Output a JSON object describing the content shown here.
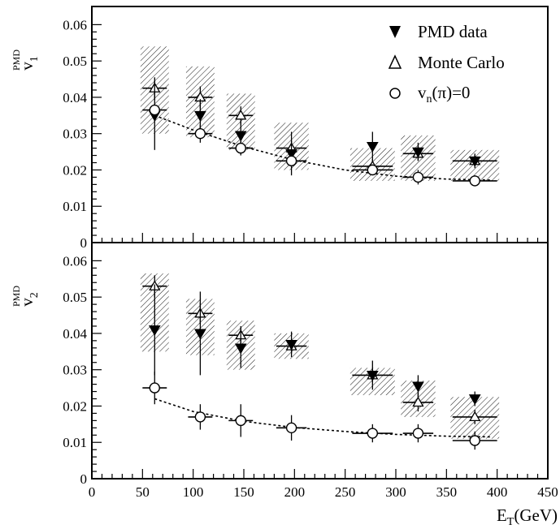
{
  "chart_data": [
    {
      "panel": "top",
      "type": "scatter",
      "ylabel": {
        "main": "v",
        "sub": "1",
        "sup": "PMD"
      },
      "xlim": [
        0,
        450
      ],
      "ylim": [
        0,
        0.065
      ],
      "yticks": [
        "0",
        "0.01",
        "0.02",
        "0.03",
        "0.04",
        "0.05",
        "0.06"
      ],
      "legend": {
        "position": "top-right",
        "entries": [
          {
            "marker": "filled-down-triangle",
            "text": "PMD data"
          },
          {
            "marker": "open-up-triangle",
            "text": "Monte Carlo"
          },
          {
            "marker": "open-circle",
            "main": "v",
            "sub": "n",
            "rest": "(π)=0"
          }
        ]
      },
      "series": [
        {
          "name": "PMD data",
          "marker": "filled-down-triangle",
          "x": [
            62,
            107,
            147,
            197,
            277,
            322,
            378
          ],
          "y": [
            0.035,
            0.035,
            0.0295,
            0.0245,
            0.0265,
            0.025,
            0.0225
          ],
          "yerr": [
            0.0095,
            0.0045,
            0.004,
            0.006,
            0.004,
            0.0025,
            0.002
          ]
        },
        {
          "name": "Monte Carlo",
          "marker": "open-up-triangle",
          "x": [
            62,
            107,
            147,
            197,
            277,
            322,
            378
          ],
          "y": [
            0.0425,
            0.04,
            0.035,
            0.026,
            0.021,
            0.0245,
            0.0225
          ],
          "yerr": [
            0.003,
            0.003,
            0.0025,
            0.002,
            0.002,
            0.002,
            0.0015
          ],
          "xerr": [
            12,
            12,
            12,
            15,
            20,
            15,
            22
          ],
          "syst_band": [
            [
              0.03,
              0.054
            ],
            [
              0.029,
              0.0485
            ],
            [
              0.0255,
              0.041
            ],
            [
              0.02,
              0.033
            ],
            [
              0.017,
              0.026
            ],
            [
              0.017,
              0.0295
            ],
            [
              0.017,
              0.0255
            ]
          ]
        },
        {
          "name": "v_n(π)=0",
          "marker": "open-circle",
          "x": [
            62,
            107,
            147,
            197,
            277,
            322,
            378
          ],
          "y": [
            0.0365,
            0.03,
            0.026,
            0.0225,
            0.02,
            0.018,
            0.017
          ],
          "yerr": [
            0.0015,
            0.0025,
            0.002,
            0.002,
            0.0015,
            0.002,
            0.0015
          ],
          "xerr": [
            12,
            12,
            12,
            15,
            20,
            15,
            22
          ],
          "fit_curve": {
            "style": "dotted",
            "x": [
              62,
              100,
              150,
              200,
              250,
              300,
              350,
              395
            ],
            "y": [
              0.035,
              0.031,
              0.0264,
              0.0227,
              0.02,
              0.0183,
              0.0175,
              0.0172
            ]
          }
        }
      ]
    },
    {
      "panel": "bottom",
      "type": "scatter",
      "ylabel": {
        "main": "v",
        "sub": "2",
        "sup": "PMD"
      },
      "xlabel": {
        "main": "E",
        "sub": "T",
        "rest": "(GeV)"
      },
      "xlim": [
        0,
        450
      ],
      "ylim": [
        0,
        0.065
      ],
      "xticks": [
        "0",
        "50",
        "100",
        "150",
        "200",
        "250",
        "300",
        "350",
        "400",
        "450"
      ],
      "yticks": [
        "0",
        "0.01",
        "0.02",
        "0.03",
        "0.04",
        "0.05",
        "0.06"
      ],
      "series": [
        {
          "name": "PMD data",
          "marker": "filled-down-triangle",
          "x": [
            62,
            107,
            147,
            197,
            277,
            322,
            378
          ],
          "y": [
            0.041,
            0.04,
            0.036,
            0.037,
            0.0285,
            0.0255,
            0.022
          ],
          "yerr": [
            0.0125,
            0.0115,
            0.0055,
            0.0035,
            0.004,
            0.003,
            0.002
          ]
        },
        {
          "name": "Monte Carlo",
          "marker": "open-up-triangle",
          "x": [
            62,
            107,
            147,
            197,
            277,
            322,
            378
          ],
          "y": [
            0.053,
            0.0455,
            0.0395,
            0.0365,
            0.0285,
            0.021,
            0.017
          ],
          "yerr": [
            0.003,
            0.003,
            0.0025,
            0.002,
            0.002,
            0.0025,
            0.002
          ],
          "xerr": [
            12,
            12,
            12,
            15,
            20,
            15,
            22
          ],
          "syst_band": [
            [
              0.035,
              0.0565
            ],
            [
              0.034,
              0.0495
            ],
            [
              0.03,
              0.0435
            ],
            [
              0.033,
              0.04
            ],
            [
              0.023,
              0.0305
            ],
            [
              0.017,
              0.027
            ],
            [
              0.011,
              0.0225
            ]
          ]
        },
        {
          "name": "v_n(π)=0",
          "marker": "open-circle",
          "x": [
            62,
            107,
            147,
            197,
            277,
            322,
            378
          ],
          "y": [
            0.025,
            0.017,
            0.016,
            0.014,
            0.0125,
            0.0125,
            0.0105
          ],
          "yerr": [
            0.0045,
            0.0035,
            0.0045,
            0.0035,
            0.0025,
            0.0025,
            0.0025
          ],
          "xerr": [
            12,
            12,
            12,
            15,
            20,
            15,
            22
          ],
          "fit_curve": {
            "style": "dotted",
            "x": [
              62,
              100,
              150,
              200,
              250,
              300,
              350,
              395
            ],
            "y": [
              0.022,
              0.0185,
              0.0158,
              0.0141,
              0.013,
              0.0122,
              0.0117,
              0.0115
            ]
          }
        }
      ]
    }
  ]
}
